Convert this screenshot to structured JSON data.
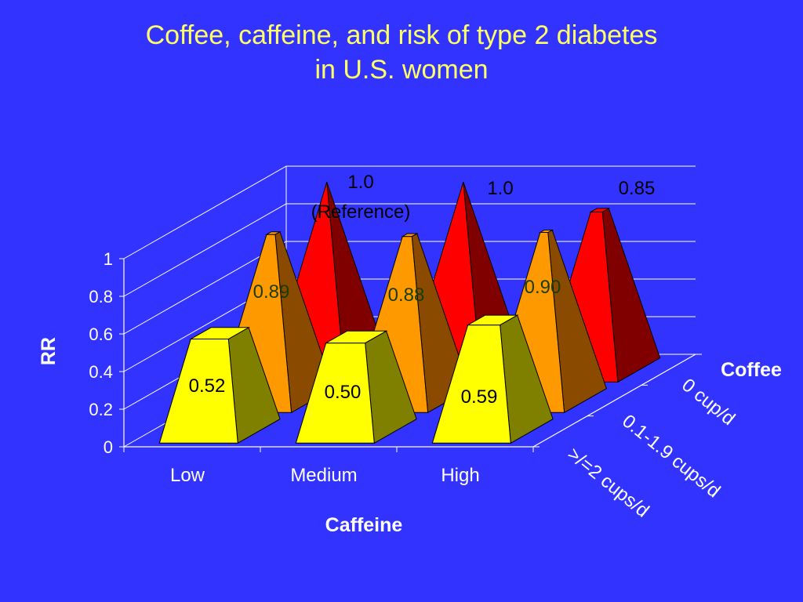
{
  "title": {
    "line1": "Coffee, caffeine, and risk of type 2 diabetes",
    "line2": "in U.S. women"
  },
  "colors": {
    "background": "#3333ff",
    "title": "#ffff66",
    "axis_text": "#ffffff",
    "series": [
      "#ff0000",
      "#ff9900",
      "#ffff00"
    ],
    "series_side": [
      "#800000",
      "#8a4a00",
      "#808000"
    ]
  },
  "chart_data": {
    "type": "bar",
    "subtype": "3d-pyramid",
    "categories": [
      "Low",
      "Medium",
      "High"
    ],
    "series": [
      {
        "name": "0 cup/d",
        "values": [
          1.0,
          1.0,
          0.85
        ],
        "labels": [
          "1.0\n(Reference)",
          "1.0",
          "0.85"
        ]
      },
      {
        "name": "0.1-1.9 cups/d",
        "values": [
          0.89,
          0.88,
          0.9
        ],
        "labels": [
          "0.89",
          "0.88",
          "0.90"
        ]
      },
      {
        "name": ">/=2 cups/d",
        "values": [
          0.52,
          0.5,
          0.59
        ],
        "labels": [
          "0.52",
          "0.50",
          "0.59"
        ]
      }
    ],
    "xlabel": "Caffeine",
    "ylabel": "RR",
    "zlabel": "Coffee",
    "ylim": [
      0,
      1
    ],
    "yticks": [
      "0",
      "0.2",
      "0.4",
      "0.6",
      "0.8",
      "1"
    ],
    "grid": true
  }
}
